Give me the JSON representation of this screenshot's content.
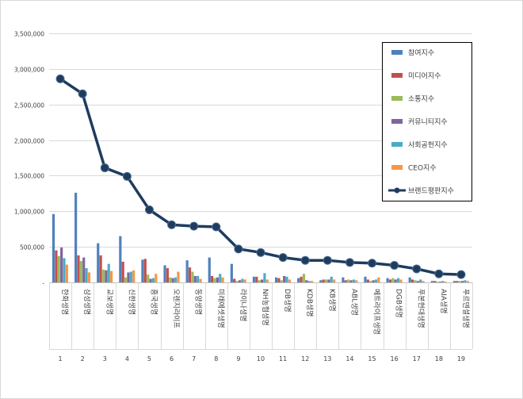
{
  "chart_data": {
    "type": "bar",
    "title": "",
    "xlabel": "",
    "ylabel": "",
    "ylim": [
      0,
      3500000
    ],
    "yticks": [
      0,
      500000,
      1000000,
      1500000,
      2000000,
      2500000,
      3000000,
      3500000
    ],
    "ytick_labels": [
      "-",
      "500,000",
      "1,000,000",
      "1,500,000",
      "2,000,000",
      "2,500,000",
      "3,000,000",
      "3,500,000"
    ],
    "grid": "horizontal",
    "legend_position": "top-right",
    "categories": [
      "한화생명",
      "삼성생명",
      "교보생명",
      "신한생명",
      "흥국생명",
      "오렌지라이프",
      "동양생명",
      "미래에셋생명",
      "라이나생명",
      "NH농협생명",
      "DB생명",
      "KDB생명",
      "KB생명",
      "ABL생명",
      "메트라이프생명",
      "DGB생명",
      "푸본현대생명",
      "AIA생명",
      "푸르덴셜생명"
    ],
    "rank_labels": [
      "1",
      "2",
      "3",
      "4",
      "5",
      "6",
      "7",
      "8",
      "9",
      "10",
      "11",
      "12",
      "13",
      "14",
      "15",
      "16",
      "17",
      "18",
      "19"
    ],
    "series": [
      {
        "name": "참여지수",
        "type": "bar",
        "color": "#4f81bd",
        "values": [
          960000,
          1260000,
          550000,
          650000,
          320000,
          240000,
          310000,
          350000,
          260000,
          80000,
          70000,
          60000,
          30000,
          70000,
          80000,
          60000,
          70000,
          20000,
          20000
        ]
      },
      {
        "name": "미디어지수",
        "type": "bar",
        "color": "#c0504d",
        "values": [
          450000,
          380000,
          380000,
          290000,
          330000,
          200000,
          210000,
          90000,
          50000,
          80000,
          60000,
          80000,
          40000,
          30000,
          40000,
          40000,
          40000,
          20000,
          20000
        ]
      },
      {
        "name": "소통지수",
        "type": "bar",
        "color": "#9bbb59",
        "values": [
          370000,
          300000,
          180000,
          70000,
          110000,
          70000,
          150000,
          60000,
          20000,
          30000,
          30000,
          120000,
          40000,
          40000,
          20000,
          60000,
          30000,
          10000,
          20000
        ]
      },
      {
        "name": "커뮤니티지수",
        "type": "bar",
        "color": "#8064a2",
        "values": [
          490000,
          350000,
          170000,
          140000,
          50000,
          60000,
          90000,
          70000,
          30000,
          40000,
          90000,
          30000,
          40000,
          30000,
          30000,
          40000,
          20000,
          10000,
          20000
        ]
      },
      {
        "name": "사회공헌지수",
        "type": "bar",
        "color": "#4bacc6",
        "values": [
          340000,
          200000,
          260000,
          150000,
          60000,
          70000,
          90000,
          120000,
          50000,
          130000,
          80000,
          20000,
          80000,
          40000,
          40000,
          60000,
          40000,
          20000,
          30000
        ]
      },
      {
        "name": "CEO지수",
        "type": "bar",
        "color": "#f79646",
        "values": [
          250000,
          140000,
          160000,
          170000,
          120000,
          150000,
          50000,
          70000,
          40000,
          40000,
          40000,
          20000,
          40000,
          30000,
          70000,
          40000,
          20000,
          10000,
          20000
        ]
      },
      {
        "name": "브랜드평판지수",
        "type": "line",
        "color": "#1f3c5e",
        "values": [
          2860000,
          2650000,
          1610000,
          1490000,
          1020000,
          810000,
          790000,
          780000,
          470000,
          420000,
          350000,
          310000,
          310000,
          280000,
          270000,
          240000,
          190000,
          120000,
          110000
        ]
      }
    ]
  }
}
